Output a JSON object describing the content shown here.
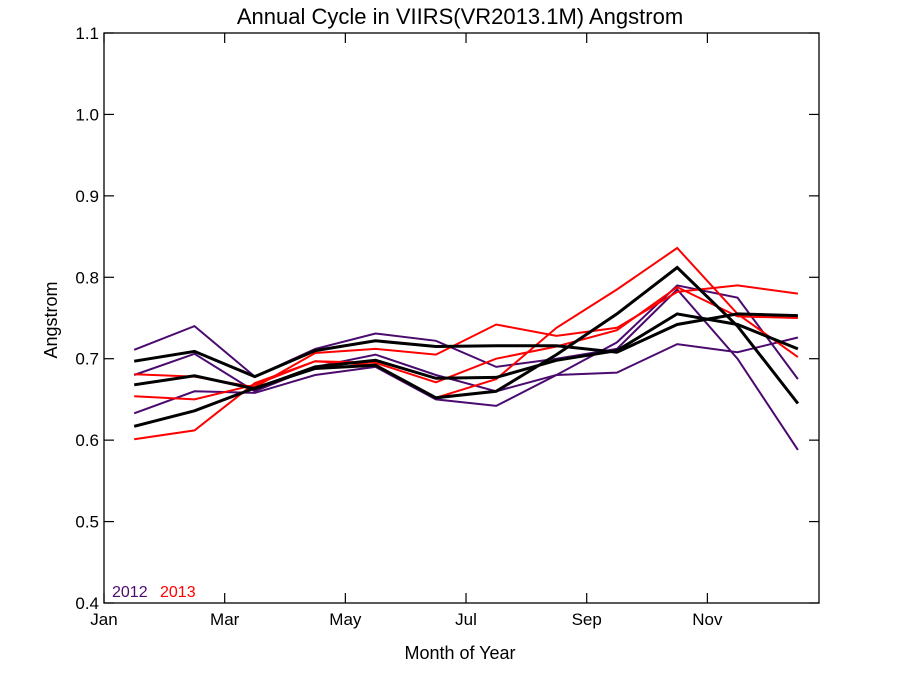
{
  "chart_data": {
    "type": "line",
    "title": "Annual Cycle in VIIRS(VR2013.1M) Angstrom",
    "xlabel": "Month of Year",
    "ylabel": "Angstrom",
    "xlim": [
      1,
      12.85
    ],
    "ylim": [
      0.4,
      1.1
    ],
    "xticks": [
      1,
      3,
      5,
      7,
      9,
      11
    ],
    "xtick_labels": [
      "Jan",
      "Mar",
      "May",
      "Jul",
      "Sep",
      "Nov"
    ],
    "yticks": [
      0.4,
      0.5,
      0.6,
      0.7,
      0.8,
      0.9,
      1.0,
      1.1
    ],
    "ytick_labels": [
      "0.4",
      "0.5",
      "0.6",
      "0.7",
      "0.8",
      "0.9",
      "1.0",
      "1.1"
    ],
    "x": [
      1.5,
      2.5,
      3.5,
      4.5,
      5.5,
      6.5,
      7.5,
      8.5,
      9.5,
      10.5,
      11.5,
      12.5
    ],
    "legend": [
      {
        "label": "2012",
        "color": "#4b0a6e"
      },
      {
        "label": "2013",
        "color": "#ff0000"
      }
    ],
    "series": [
      {
        "color": "#4b0a6e",
        "values": [
          0.711,
          0.74,
          0.678,
          0.712,
          0.731,
          0.722,
          0.69,
          0.7,
          0.712,
          0.785,
          0.7,
          0.588
        ]
      },
      {
        "color": "#4b0a6e",
        "values": [
          0.68,
          0.706,
          0.66,
          0.69,
          0.705,
          0.68,
          0.66,
          0.68,
          0.72,
          0.79,
          0.775,
          0.675
        ]
      },
      {
        "color": "#4b0a6e",
        "values": [
          0.633,
          0.66,
          0.658,
          0.68,
          0.69,
          0.65,
          0.642,
          0.68,
          0.683,
          0.718,
          0.708,
          0.726
        ]
      },
      {
        "color": "#ff0000",
        "values": [
          0.681,
          0.678,
          0.665,
          0.707,
          0.712,
          0.705,
          0.742,
          0.728,
          0.738,
          0.782,
          0.79,
          0.78
        ]
      },
      {
        "color": "#ff0000",
        "values": [
          0.654,
          0.65,
          0.668,
          0.697,
          0.695,
          0.671,
          0.7,
          0.715,
          0.735,
          0.788,
          0.752,
          0.75
        ]
      },
      {
        "color": "#ff0000",
        "values": [
          0.601,
          0.612,
          0.67,
          0.697,
          0.692,
          0.652,
          0.675,
          0.738,
          0.785,
          0.836,
          0.755,
          0.702
        ]
      },
      {
        "color": "#000000",
        "values": [
          0.697,
          0.709,
          0.678,
          0.71,
          0.722,
          0.715,
          0.716,
          0.716,
          0.708,
          0.742,
          0.755,
          0.753
        ]
      },
      {
        "color": "#000000",
        "values": [
          0.668,
          0.679,
          0.663,
          0.69,
          0.698,
          0.676,
          0.677,
          0.698,
          0.71,
          0.755,
          0.742,
          0.712
        ]
      },
      {
        "color": "#000000",
        "values": [
          0.617,
          0.636,
          0.664,
          0.688,
          0.692,
          0.652,
          0.66,
          0.705,
          0.755,
          0.812,
          0.74,
          0.645
        ]
      }
    ]
  }
}
